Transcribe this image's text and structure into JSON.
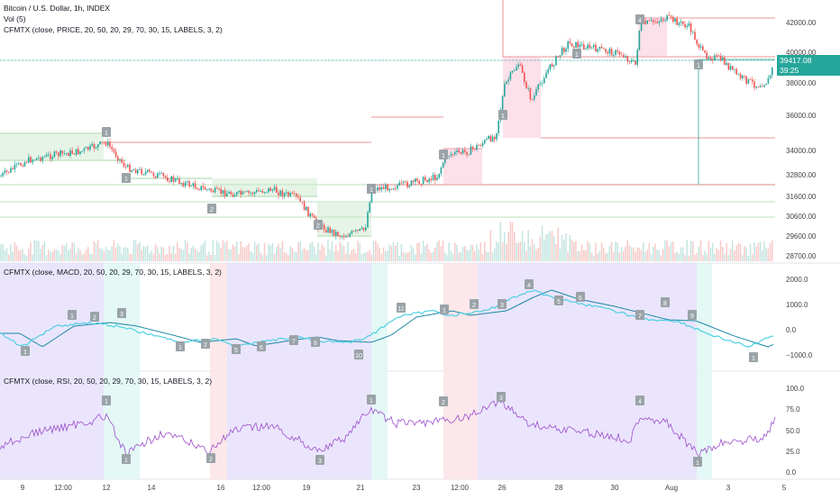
{
  "legend": {
    "main_title": "Bitcoin / U.S. Dollar, 1h, INDEX",
    "vol": "Vol (5)",
    "price_indicator": "CFMTX (close, PRICE, 20, 50, 20, 29, 70, 30, 15, LABELS, 3, 2)",
    "macd_indicator": "CFMTX (close, MACD, 20, 50, 20, 29, 70, 30, 15, LABELS, 3, 2)",
    "rsi_indicator": "CFMTX (close, RSI, 20, 50, 20, 29, 70, 30, 15, LABELS, 3, 2)"
  },
  "price_axis": [
    "42000.00",
    "40000.00",
    "38000.00",
    "36000.00",
    "34000.00",
    "32800.00",
    "31600.00",
    "30600.00",
    "29600.00",
    "28700.00"
  ],
  "current_price": {
    "value": "39417.08",
    "countdown": "39:25"
  },
  "macd_axis": [
    "2000.0",
    "1000.0",
    "0.0",
    "−1000.0"
  ],
  "rsi_axis": [
    "100.0",
    "75.0",
    "50.0",
    "25.0",
    "0.0"
  ],
  "time_axis": [
    "9",
    "12:00",
    "12",
    "14",
    "16",
    "12:00",
    "19",
    "21",
    "23",
    "12:00",
    "26",
    "28",
    "30",
    "Aug",
    "3",
    "5"
  ],
  "price_labels": [
    "1",
    "1",
    "2",
    "2",
    "1",
    "1",
    "1",
    "1",
    "4",
    "1"
  ],
  "macd_labels": [
    "1",
    "1",
    "2",
    "3",
    "1",
    "2",
    "5",
    "6",
    "7",
    "8",
    "10",
    "11",
    "1",
    "2",
    "3",
    "4",
    "5",
    "6",
    "7",
    "8",
    "9",
    "1"
  ],
  "rsi_labels": [
    "1",
    "1",
    "2",
    "3",
    "1",
    "2",
    "3",
    "4",
    "1"
  ],
  "colors": {
    "up": "#26a69a",
    "down": "#ef5350",
    "label": "#9aa3a8",
    "macd_line": "#4dd0e1",
    "signal_line": "#1e88a8",
    "rsi_line": "#9c4dcc",
    "zone_purple": "#e6e1fb",
    "zone_cyan": "#dff7f4",
    "zone_pink": "#fbe3e6"
  }
}
